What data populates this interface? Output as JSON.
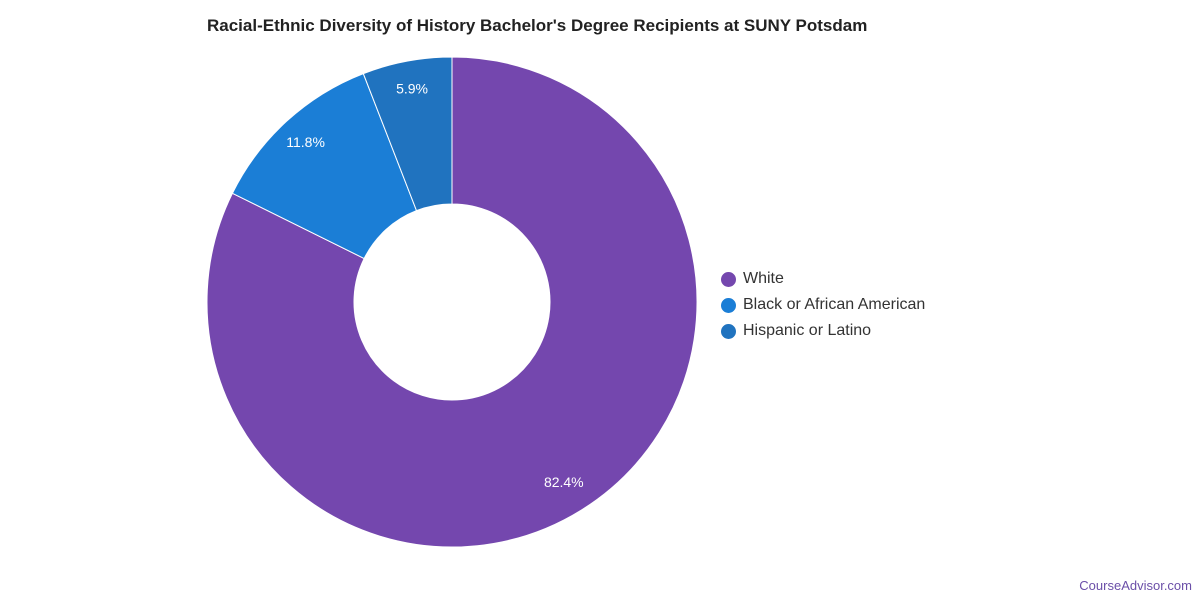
{
  "title": "Racial-Ethnic Diversity of History Bachelor's Degree Recipients at SUNY Potsdam",
  "credit": "CourseAdvisor.com",
  "chart_data": {
    "type": "pie",
    "donut": true,
    "start_angle_deg": 0,
    "direction": "clockwise",
    "legend_position": "right",
    "slice_border_color": "#ffffff",
    "series": [
      {
        "name": "White",
        "value": 82.4,
        "label": "82.4%",
        "color": "#7447ae"
      },
      {
        "name": "Black or African American",
        "value": 11.8,
        "label": "11.8%",
        "color": "#1b7ed6"
      },
      {
        "name": "Hispanic or Latino",
        "value": 5.9,
        "label": "5.9%",
        "color": "#2073bf"
      }
    ]
  }
}
